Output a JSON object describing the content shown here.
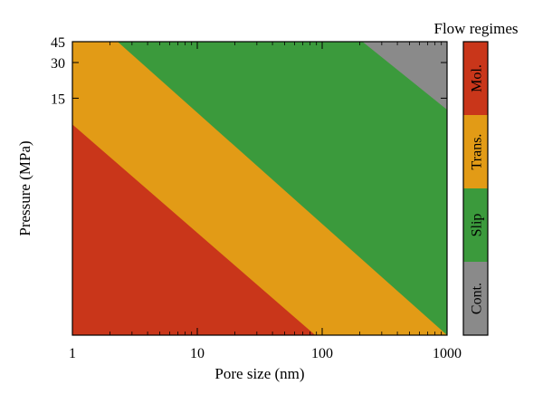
{
  "chart_data": {
    "type": "area",
    "xlabel": "Pore size (nm)",
    "ylabel": "Pressure (MPa)",
    "x_scale": "log",
    "y_scale": "log",
    "xlim": [
      1,
      1000
    ],
    "ylim": [
      0.15,
      45
    ],
    "x_ticks": [
      1,
      10,
      100,
      1000
    ],
    "x_tick_labels": [
      "1",
      "10",
      "100",
      "1000"
    ],
    "y_ticks": [
      15,
      30,
      45
    ],
    "y_tick_labels": [
      "15",
      "30",
      "45"
    ],
    "grid": false,
    "regions": [
      {
        "name": "Mol.",
        "color": "#c9361a"
      },
      {
        "name": "Trans.",
        "color": "#e29b16"
      },
      {
        "name": "Slip",
        "color": "#3b9a3c"
      },
      {
        "name": "Cont.",
        "color": "#8a8a8a"
      }
    ],
    "boundaries": [
      {
        "between": [
          "Mol.",
          "Trans."
        ],
        "points": [
          [
            1,
            9.0
          ],
          [
            88,
            0.15
          ]
        ]
      },
      {
        "between": [
          "Trans.",
          "Slip"
        ],
        "points": [
          [
            2.3,
            45
          ],
          [
            1000,
            0.15
          ]
        ]
      },
      {
        "between": [
          "Slip",
          "Cont."
        ],
        "points": [
          [
            210,
            45
          ],
          [
            1000,
            12.0
          ]
        ]
      }
    ],
    "legend": {
      "title": "Flow regimes",
      "placement": "right",
      "entries": [
        "Mol.",
        "Trans.",
        "Slip",
        "Cont."
      ]
    }
  }
}
